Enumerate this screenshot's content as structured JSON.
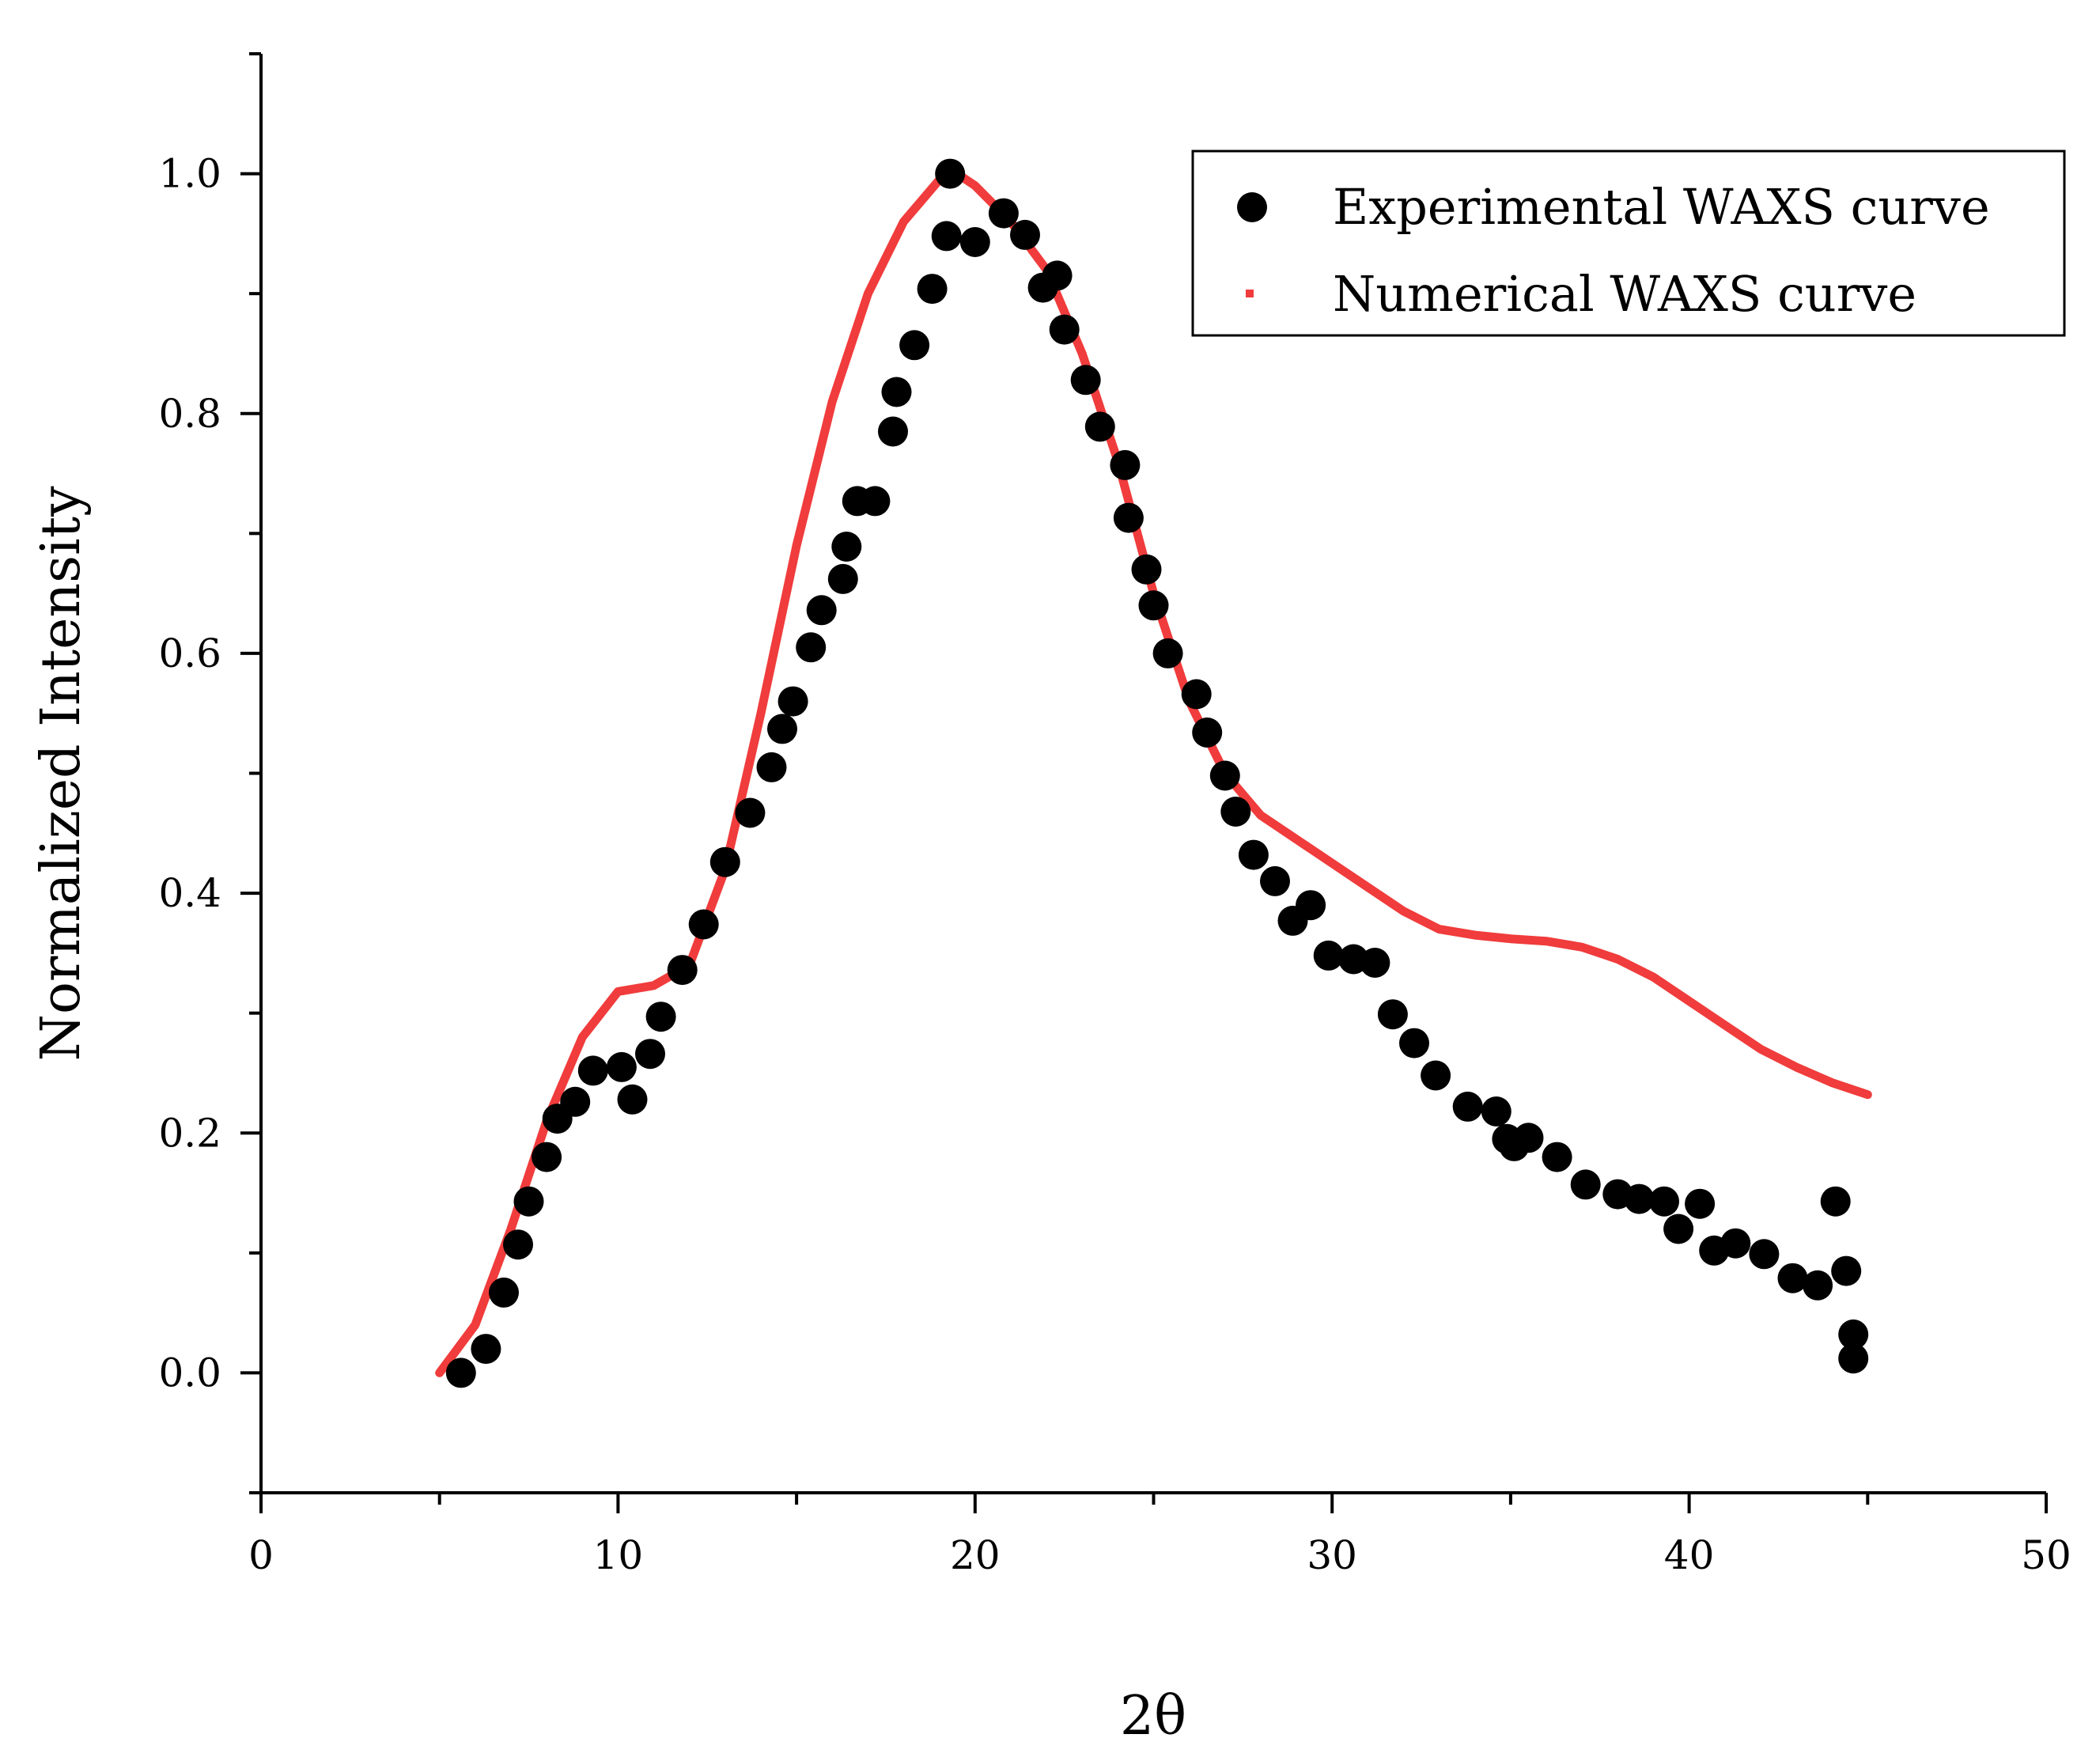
{
  "chart_data": {
    "type": "scatter",
    "title": "",
    "xlabel": "2θ",
    "ylabel": "Normalized Intensity",
    "xlim": [
      0,
      50
    ],
    "ylim": [
      -0.1,
      1.1
    ],
    "x_ticks": [
      0,
      10,
      20,
      30,
      40,
      50
    ],
    "x_tick_labels": [
      "0",
      "10",
      "20",
      "30",
      "40",
      "50"
    ],
    "y_ticks": [
      0.0,
      0.2,
      0.4,
      0.6,
      0.8,
      1.0
    ],
    "y_tick_labels": [
      "0.0",
      "0.2",
      "0.4",
      "0.6",
      "0.8",
      "1.0"
    ],
    "legend_position": "top-right",
    "series": [
      {
        "name": "Experimental WAXS curve",
        "kind": "scatter",
        "color": "#000000",
        "points": [
          [
            5.6,
            0.0
          ],
          [
            6.3,
            0.02
          ],
          [
            6.8,
            0.067
          ],
          [
            7.2,
            0.107
          ],
          [
            7.5,
            0.143
          ],
          [
            8.0,
            0.18
          ],
          [
            8.3,
            0.212
          ],
          [
            8.8,
            0.226
          ],
          [
            9.3,
            0.252
          ],
          [
            10.1,
            0.255
          ],
          [
            10.4,
            0.228
          ],
          [
            10.9,
            0.266
          ],
          [
            11.2,
            0.297
          ],
          [
            11.8,
            0.336
          ],
          [
            12.4,
            0.374
          ],
          [
            13.0,
            0.426
          ],
          [
            13.7,
            0.467
          ],
          [
            14.3,
            0.505
          ],
          [
            14.6,
            0.537
          ],
          [
            14.9,
            0.56
          ],
          [
            15.4,
            0.605
          ],
          [
            15.7,
            0.636
          ],
          [
            16.3,
            0.662
          ],
          [
            16.4,
            0.689
          ],
          [
            16.7,
            0.727
          ],
          [
            17.2,
            0.727
          ],
          [
            17.7,
            0.785
          ],
          [
            17.8,
            0.818
          ],
          [
            18.3,
            0.857
          ],
          [
            18.8,
            0.904
          ],
          [
            19.2,
            0.948
          ],
          [
            19.3,
            1.0
          ],
          [
            20.0,
            0.943
          ],
          [
            20.8,
            0.967
          ],
          [
            21.4,
            0.949
          ],
          [
            21.9,
            0.905
          ],
          [
            22.3,
            0.915
          ],
          [
            22.5,
            0.87
          ],
          [
            23.1,
            0.828
          ],
          [
            23.5,
            0.789
          ],
          [
            24.2,
            0.757
          ],
          [
            24.3,
            0.713
          ],
          [
            24.8,
            0.67
          ],
          [
            25.0,
            0.64
          ],
          [
            25.4,
            0.6
          ],
          [
            26.2,
            0.566
          ],
          [
            26.5,
            0.534
          ],
          [
            27.0,
            0.498
          ],
          [
            27.3,
            0.468
          ],
          [
            27.8,
            0.432
          ],
          [
            28.4,
            0.41
          ],
          [
            28.9,
            0.377
          ],
          [
            29.4,
            0.39
          ],
          [
            29.9,
            0.348
          ],
          [
            30.6,
            0.345
          ],
          [
            31.2,
            0.342
          ],
          [
            31.7,
            0.299
          ],
          [
            32.3,
            0.275
          ],
          [
            32.9,
            0.248
          ],
          [
            33.8,
            0.222
          ],
          [
            34.6,
            0.218
          ],
          [
            34.9,
            0.195
          ],
          [
            35.1,
            0.189
          ],
          [
            35.5,
            0.196
          ],
          [
            36.3,
            0.18
          ],
          [
            37.1,
            0.157
          ],
          [
            38.0,
            0.149
          ],
          [
            38.6,
            0.145
          ],
          [
            39.3,
            0.143
          ],
          [
            39.7,
            0.12
          ],
          [
            40.3,
            0.141
          ],
          [
            40.7,
            0.102
          ],
          [
            41.3,
            0.108
          ],
          [
            42.1,
            0.099
          ],
          [
            42.9,
            0.079
          ],
          [
            43.6,
            0.073
          ],
          [
            44.1,
            0.143
          ],
          [
            44.4,
            0.085
          ],
          [
            44.6,
            0.032
          ],
          [
            44.6,
            0.012
          ]
        ]
      },
      {
        "name": "Numerical WAXS curve",
        "kind": "line",
        "color": "#f03c3c",
        "points": [
          [
            5.0,
            0.0
          ],
          [
            6.0,
            0.04
          ],
          [
            7.0,
            0.12
          ],
          [
            8.0,
            0.21
          ],
          [
            9.0,
            0.28
          ],
          [
            10.0,
            0.318
          ],
          [
            11.0,
            0.323
          ],
          [
            12.0,
            0.34
          ],
          [
            13.0,
            0.42
          ],
          [
            14.0,
            0.55
          ],
          [
            15.0,
            0.69
          ],
          [
            16.0,
            0.81
          ],
          [
            17.0,
            0.9
          ],
          [
            18.0,
            0.96
          ],
          [
            19.0,
            0.995
          ],
          [
            19.5,
            1.0
          ],
          [
            20.0,
            0.99
          ],
          [
            21.0,
            0.96
          ],
          [
            22.0,
            0.92
          ],
          [
            23.0,
            0.85
          ],
          [
            24.0,
            0.76
          ],
          [
            25.0,
            0.65
          ],
          [
            26.0,
            0.56
          ],
          [
            27.0,
            0.5
          ],
          [
            28.0,
            0.465
          ],
          [
            29.0,
            0.445
          ],
          [
            30.0,
            0.425
          ],
          [
            31.0,
            0.405
          ],
          [
            32.0,
            0.385
          ],
          [
            33.0,
            0.37
          ],
          [
            34.0,
            0.365
          ],
          [
            35.0,
            0.362
          ],
          [
            36.0,
            0.36
          ],
          [
            37.0,
            0.355
          ],
          [
            38.0,
            0.345
          ],
          [
            39.0,
            0.33
          ],
          [
            40.0,
            0.31
          ],
          [
            41.0,
            0.29
          ],
          [
            42.0,
            0.27
          ],
          [
            43.0,
            0.255
          ],
          [
            44.0,
            0.242
          ],
          [
            45.0,
            0.232
          ]
        ]
      }
    ]
  }
}
